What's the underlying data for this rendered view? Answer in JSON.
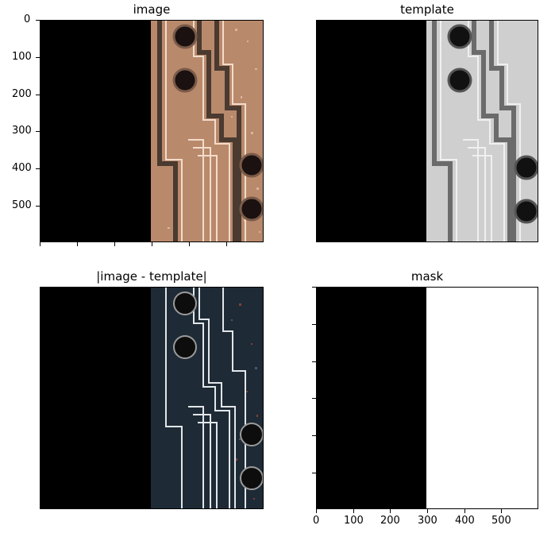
{
  "figure": {
    "panels": [
      {
        "id": "image",
        "title": "image"
      },
      {
        "id": "template",
        "title": "template"
      },
      {
        "id": "diff",
        "title": "|image - template|"
      },
      {
        "id": "mask",
        "title": "mask"
      }
    ],
    "y_ticks": [
      "0",
      "100",
      "200",
      "300",
      "400",
      "500"
    ],
    "x_ticks": [
      "0",
      "100",
      "200",
      "300",
      "400",
      "500"
    ]
  },
  "colors": {
    "background": "#ffffff",
    "black_region": "#000000",
    "copper": "#c79a7a",
    "trace_dark": "#5a4a3f",
    "template_light": "#d8d8d8",
    "template_mid": "#8a8a8a",
    "diff_dark": "#1c2a36",
    "mask_white": "#ffffff"
  }
}
